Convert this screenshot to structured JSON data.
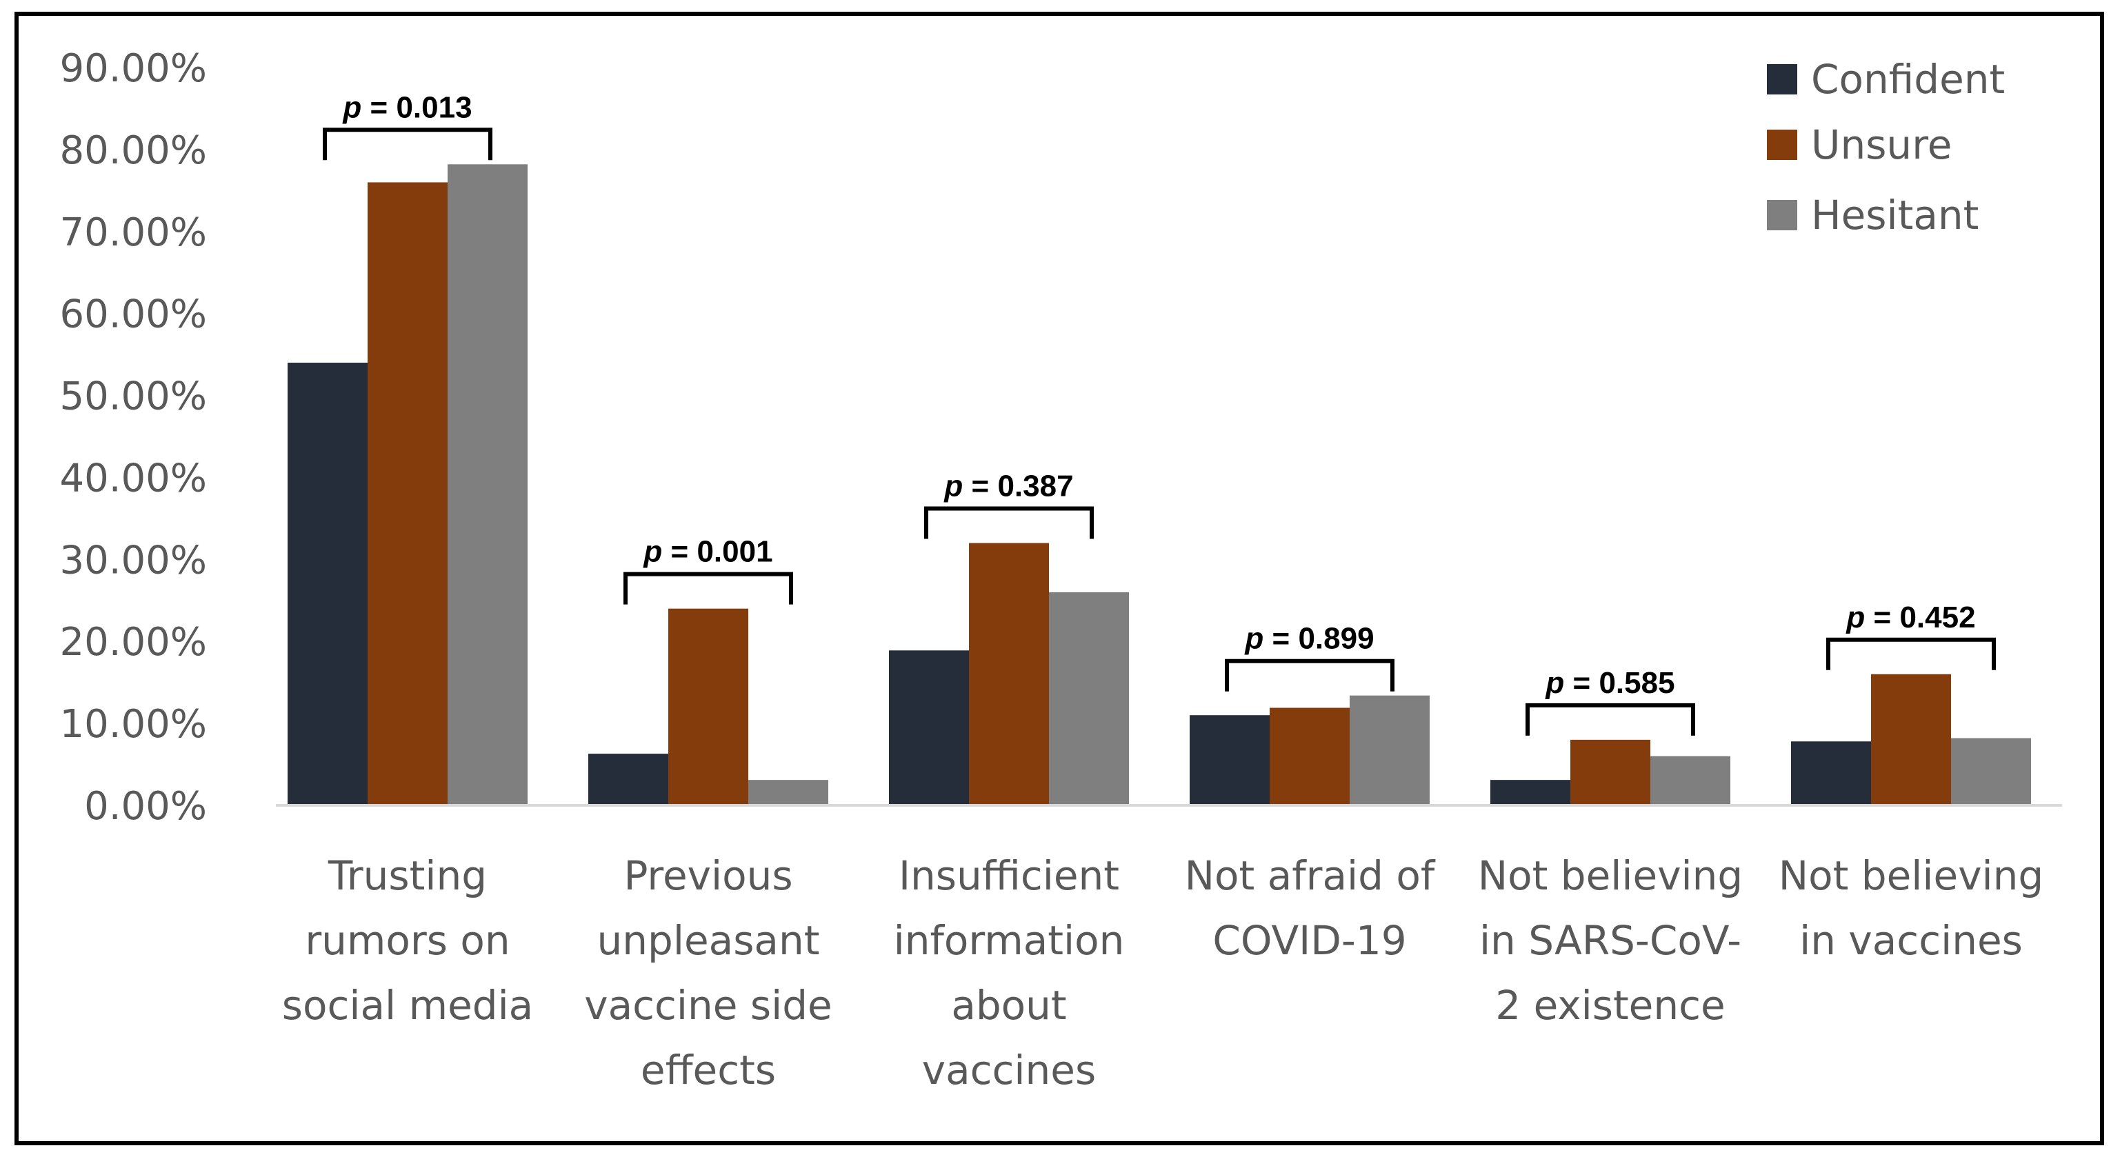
{
  "chart_data": {
    "type": "bar",
    "title": "",
    "xlabel": "",
    "ylabel": "",
    "ylim": [
      0,
      90
    ],
    "y_ticks": [
      "0.00%",
      "10.00%",
      "20.00%",
      "30.00%",
      "40.00%",
      "50.00%",
      "60.00%",
      "70.00%",
      "80.00%",
      "90.00%"
    ],
    "grid": false,
    "legend_position": "top-right",
    "categories": [
      [
        "Trusting",
        "rumors on",
        "social media"
      ],
      [
        "Previous",
        "unpleasant",
        "vaccine side",
        "effects"
      ],
      [
        "Insufficient",
        "information",
        "about",
        "vaccines"
      ],
      [
        "Not afraid of",
        "COVID-19"
      ],
      [
        "Not believing",
        "in SARS-CoV-",
        "2 existence"
      ],
      [
        "Not believing",
        "in vaccines"
      ]
    ],
    "series": [
      {
        "name": "Confident",
        "color": "#252d3b",
        "values": [
          54,
          6.3,
          18.9,
          11,
          3.1,
          7.8
        ]
      },
      {
        "name": "Unsure",
        "color": "#843c0c",
        "values": [
          76,
          24,
          32,
          11.9,
          8,
          16
        ]
      },
      {
        "name": "Hesitant",
        "color": "#7f7f7f",
        "values": [
          78.2,
          3.1,
          26,
          13.4,
          6,
          8.2
        ]
      }
    ],
    "annotations": [
      {
        "p_symbol": "p",
        "p_rest": " = 0.013"
      },
      {
        "p_symbol": "p",
        "p_rest": " = 0.001"
      },
      {
        "p_symbol": "p",
        "p_rest": " = 0.387"
      },
      {
        "p_symbol": "p",
        "p_rest": " = 0.899"
      },
      {
        "p_symbol": "p",
        "p_rest": " = 0.585"
      },
      {
        "p_symbol": "p",
        "p_rest": " = 0.452"
      }
    ]
  }
}
